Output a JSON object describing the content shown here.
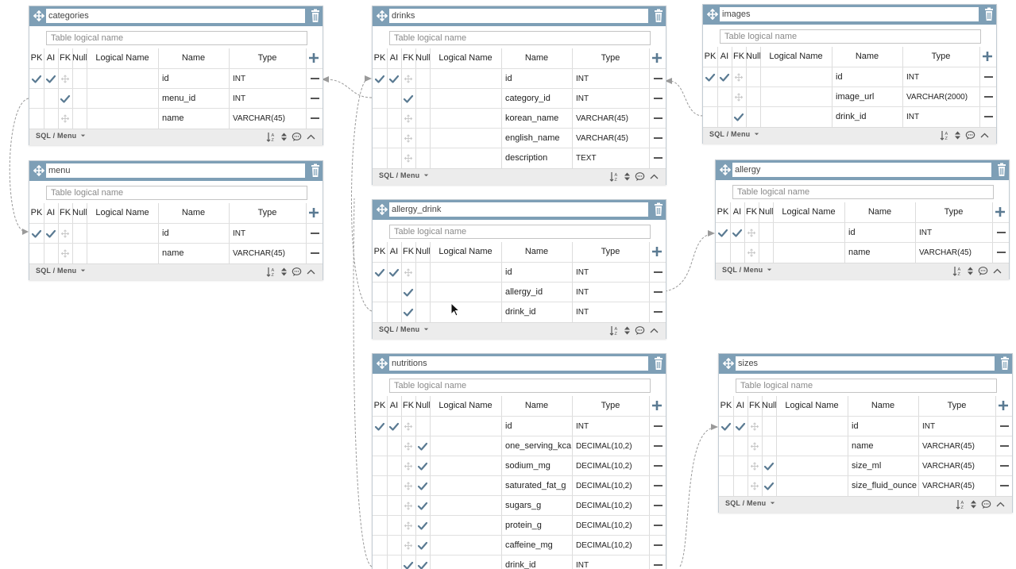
{
  "common": {
    "logical_placeholder": "Table logical name",
    "headers": {
      "pk": "PK",
      "ai": "AI",
      "fk": "FK",
      "nn": "Null",
      "logical": "Logical Name",
      "name": "Name",
      "type": "Type"
    },
    "sql_menu": "SQL / Menu"
  },
  "colors": {
    "header": "#7e9fb6",
    "check": "#5a7a92",
    "footer": "#ececec"
  },
  "tables": [
    {
      "id": "categories",
      "title": "categories",
      "rows": [
        {
          "pk": true,
          "ai": true,
          "fk": false,
          "nn": false,
          "name": "id",
          "type": "INT"
        },
        {
          "pk": false,
          "ai": false,
          "fk": true,
          "nn": false,
          "name": "menu_id",
          "type": "INT"
        },
        {
          "pk": false,
          "ai": false,
          "fk": false,
          "nn": false,
          "name": "name",
          "type": "VARCHAR(45)"
        }
      ]
    },
    {
      "id": "menu",
      "title": "menu",
      "rows": [
        {
          "pk": true,
          "ai": true,
          "fk": false,
          "nn": false,
          "name": "id",
          "type": "INT"
        },
        {
          "pk": false,
          "ai": false,
          "fk": false,
          "nn": false,
          "name": "name",
          "type": "VARCHAR(45)"
        }
      ]
    },
    {
      "id": "drinks",
      "title": "drinks",
      "rows": [
        {
          "pk": true,
          "ai": true,
          "fk": false,
          "nn": false,
          "name": "id",
          "type": "INT"
        },
        {
          "pk": false,
          "ai": false,
          "fk": true,
          "nn": false,
          "name": "category_id",
          "type": "INT"
        },
        {
          "pk": false,
          "ai": false,
          "fk": false,
          "nn": false,
          "name": "korean_name",
          "type": "VARCHAR(45)"
        },
        {
          "pk": false,
          "ai": false,
          "fk": false,
          "nn": false,
          "name": "english_name",
          "type": "VARCHAR(45)"
        },
        {
          "pk": false,
          "ai": false,
          "fk": false,
          "nn": false,
          "name": "description",
          "type": "TEXT"
        }
      ]
    },
    {
      "id": "allergy_drink",
      "title": "allergy_drink",
      "rows": [
        {
          "pk": true,
          "ai": true,
          "fk": false,
          "nn": false,
          "name": "id",
          "type": "INT"
        },
        {
          "pk": false,
          "ai": false,
          "fk": true,
          "nn": false,
          "name": "allergy_id",
          "type": "INT"
        },
        {
          "pk": false,
          "ai": false,
          "fk": true,
          "nn": false,
          "name": "drink_id",
          "type": "INT"
        }
      ]
    },
    {
      "id": "nutritions",
      "title": "nutritions",
      "rows": [
        {
          "pk": true,
          "ai": true,
          "fk": false,
          "nn": false,
          "name": "id",
          "type": "INT"
        },
        {
          "pk": false,
          "ai": false,
          "fk": false,
          "nn": true,
          "name": "one_serving_kca",
          "type": "DECIMAL(10,2)"
        },
        {
          "pk": false,
          "ai": false,
          "fk": false,
          "nn": true,
          "name": "sodium_mg",
          "type": "DECIMAL(10,2)"
        },
        {
          "pk": false,
          "ai": false,
          "fk": false,
          "nn": true,
          "name": "saturated_fat_g",
          "type": "DECIMAL(10,2)"
        },
        {
          "pk": false,
          "ai": false,
          "fk": false,
          "nn": true,
          "name": "sugars_g",
          "type": "DECIMAL(10,2)"
        },
        {
          "pk": false,
          "ai": false,
          "fk": false,
          "nn": true,
          "name": "protein_g",
          "type": "DECIMAL(10,2)"
        },
        {
          "pk": false,
          "ai": false,
          "fk": false,
          "nn": true,
          "name": "caffeine_mg",
          "type": "DECIMAL(10,2)"
        },
        {
          "pk": false,
          "ai": false,
          "fk": true,
          "nn": true,
          "name": "drink_id",
          "type": "INT"
        }
      ]
    },
    {
      "id": "images",
      "title": "images",
      "rows": [
        {
          "pk": true,
          "ai": true,
          "fk": false,
          "nn": false,
          "name": "id",
          "type": "INT"
        },
        {
          "pk": false,
          "ai": false,
          "fk": false,
          "nn": false,
          "name": "image_url",
          "type": "VARCHAR(2000)"
        },
        {
          "pk": false,
          "ai": false,
          "fk": true,
          "nn": false,
          "name": "drink_id",
          "type": "INT"
        }
      ]
    },
    {
      "id": "allergy",
      "title": "allergy",
      "rows": [
        {
          "pk": true,
          "ai": true,
          "fk": false,
          "nn": false,
          "name": "id",
          "type": "INT"
        },
        {
          "pk": false,
          "ai": false,
          "fk": false,
          "nn": false,
          "name": "name",
          "type": "VARCHAR(45)"
        }
      ]
    },
    {
      "id": "sizes",
      "title": "sizes",
      "rows": [
        {
          "pk": true,
          "ai": true,
          "fk": false,
          "nn": false,
          "name": "id",
          "type": "INT"
        },
        {
          "pk": false,
          "ai": false,
          "fk": false,
          "nn": false,
          "name": "name",
          "type": "VARCHAR(45)"
        },
        {
          "pk": false,
          "ai": false,
          "fk": false,
          "nn": true,
          "name": "size_ml",
          "type": "VARCHAR(45)"
        },
        {
          "pk": false,
          "ai": false,
          "fk": false,
          "nn": true,
          "name": "size_fluid_ounce",
          "type": "VARCHAR(45)"
        }
      ]
    }
  ]
}
